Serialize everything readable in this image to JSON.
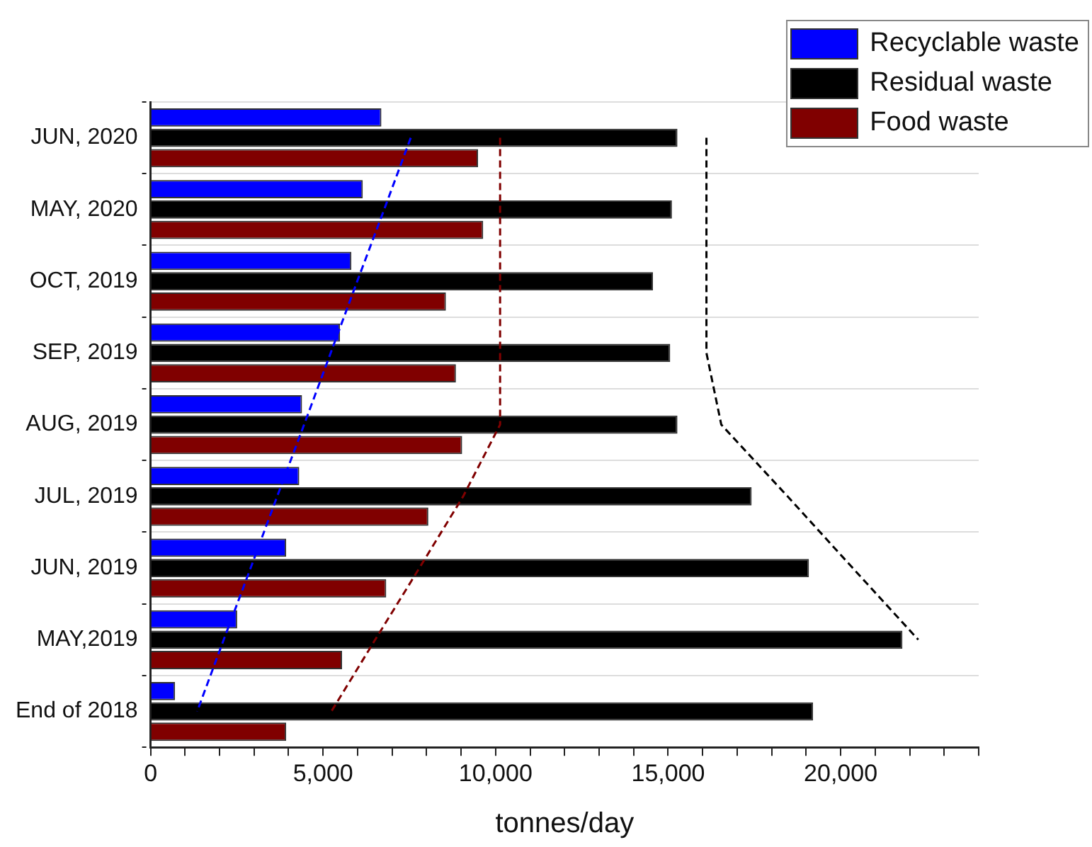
{
  "chart_data": {
    "type": "bar",
    "orientation": "horizontal",
    "xlabel": "tonnes/day",
    "categories": [
      "JUN, 2020",
      "MAY, 2020",
      "OCT, 2019",
      "SEP, 2019",
      "AUG, 2019",
      "JUL, 2019",
      "JUN, 2019",
      "MAY,2019",
      "End of 2018"
    ],
    "series": [
      {
        "name": "Recyclable waste",
        "color": "#0000ff",
        "values": [
          6690,
          6150,
          5820,
          5490,
          4390,
          4310,
          3930,
          2510,
          710
        ]
      },
      {
        "name": "Residual waste",
        "color": "#000000",
        "values": [
          15270,
          15110,
          14560,
          15060,
          15270,
          17420,
          19080,
          21790,
          19200
        ]
      },
      {
        "name": "Food waste",
        "color": "#800000",
        "values": [
          9490,
          9640,
          8560,
          8850,
          9030,
          8050,
          6830,
          5550,
          3930
        ]
      },
      {
        "type": "line",
        "color": "#0000ff",
        "line_style": "dashed",
        "marker": "none",
        "values": [
          7540,
          6770,
          5990,
          5220,
          4450,
          3670,
          2900,
          2120,
          1350
        ]
      },
      {
        "type": "line",
        "color": "#800000",
        "line_style": "dashed",
        "marker": "none",
        "values": [
          10130,
          10130,
          10130,
          10130,
          10130,
          9060,
          7790,
          6510,
          5240
        ]
      },
      {
        "type": "line",
        "color": "#000000",
        "line_style": "dashed",
        "marker": "none",
        "values": [
          16110,
          16110,
          16110,
          16110,
          16540,
          18460,
          20350,
          22250,
          null
        ]
      }
    ],
    "xlim": [
      0,
      24000
    ],
    "xticks": [
      0,
      {
        "value": 1000,
        "label": null
      },
      {
        "value": 2000,
        "label": null
      },
      {
        "value": 3000,
        "label": null
      },
      {
        "value": 4000,
        "label": null
      },
      {
        "value": 5000,
        "label": "5,000"
      },
      {
        "value": 6000,
        "label": null
      },
      {
        "value": 7000,
        "label": null
      },
      {
        "value": 8000,
        "label": null
      },
      {
        "value": 9000,
        "label": null
      },
      {
        "value": 10000,
        "label": "10,000"
      },
      {
        "value": 11000,
        "label": null
      },
      {
        "value": 12000,
        "label": null
      },
      {
        "value": 13000,
        "label": null
      },
      {
        "value": 14000,
        "label": null
      },
      {
        "value": 15000,
        "label": "15,000"
      },
      {
        "value": 16000,
        "label": null
      },
      {
        "value": 17000,
        "label": null
      },
      {
        "value": 18000,
        "label": null
      },
      {
        "value": 19000,
        "label": null
      },
      {
        "value": 20000,
        "label": "20,000"
      },
      {
        "value": 21000,
        "label": null
      },
      {
        "value": 22000,
        "label": null
      },
      {
        "value": 23000,
        "label": null
      },
      {
        "value": 24000,
        "label": null
      }
    ],
    "grid": "y",
    "legend": "top right"
  }
}
